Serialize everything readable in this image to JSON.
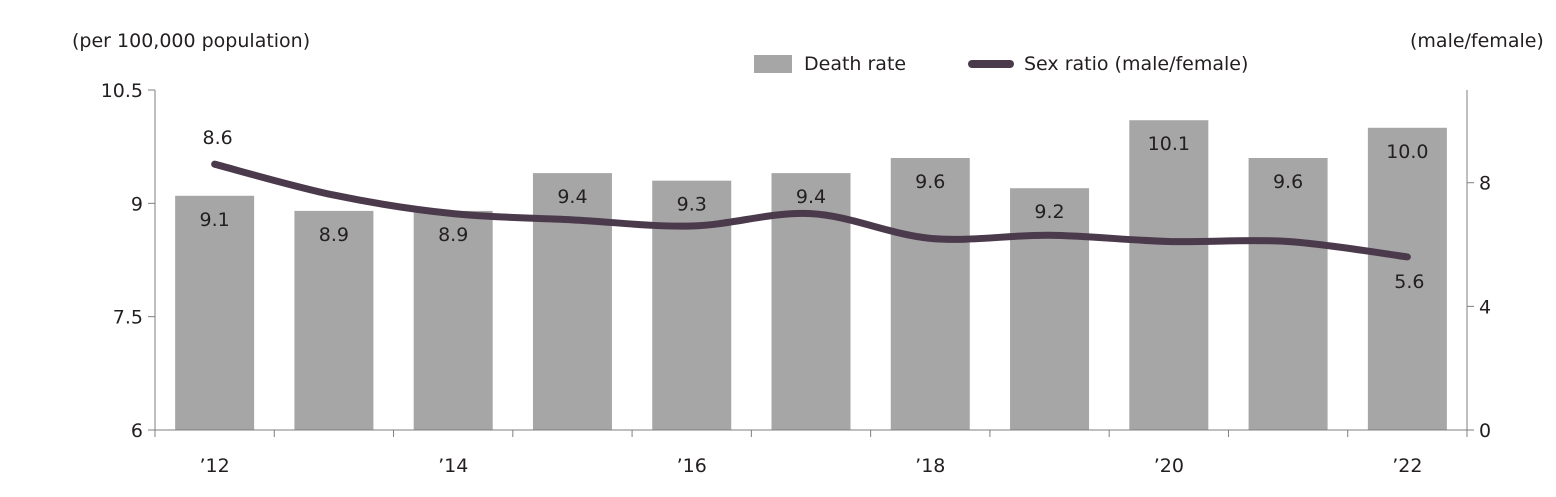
{
  "chart_data": {
    "type": "bar",
    "left_axis_unit": "(per 100,000 population)",
    "right_axis_unit": "(male/female)",
    "categories": [
      "2012",
      "2013",
      "2014",
      "2015",
      "2016",
      "2017",
      "2018",
      "2019",
      "2020",
      "2021",
      "2022"
    ],
    "x_tick_labels": [
      "’12",
      "",
      "’14",
      "",
      "’16",
      "",
      "’18",
      "",
      "’20",
      "",
      "’22"
    ],
    "left_ylim": [
      6,
      10.5
    ],
    "left_yticks": [
      "6",
      "7.5",
      "9",
      "10.5"
    ],
    "right_ylim": [
      0,
      11
    ],
    "right_yticks": [
      "0",
      "4",
      "8"
    ],
    "series": [
      {
        "name": "Death rate",
        "type": "bar",
        "axis": "left",
        "color": "#a6a6a6",
        "values": [
          9.1,
          8.9,
          8.9,
          9.4,
          9.3,
          9.4,
          9.6,
          9.2,
          10.1,
          9.6,
          10.0
        ],
        "labels": [
          "9.1",
          "8.9",
          "8.9",
          "9.4",
          "9.3",
          "9.4",
          "9.6",
          "9.2",
          "10.1",
          "9.6",
          "10.0"
        ]
      },
      {
        "name": "Sex ratio (male/female)",
        "type": "line",
        "axis": "right",
        "color": "#4b3a4b",
        "values": [
          8.6,
          7.6,
          7.0,
          6.8,
          6.6,
          7.0,
          6.2,
          6.3,
          6.1,
          6.1,
          5.6
        ],
        "labels": [
          "8.6",
          "",
          "",
          "",
          "",
          "",
          "",
          "",
          "",
          "",
          "5.6"
        ]
      }
    ],
    "legend": "top-center",
    "grid": false
  }
}
